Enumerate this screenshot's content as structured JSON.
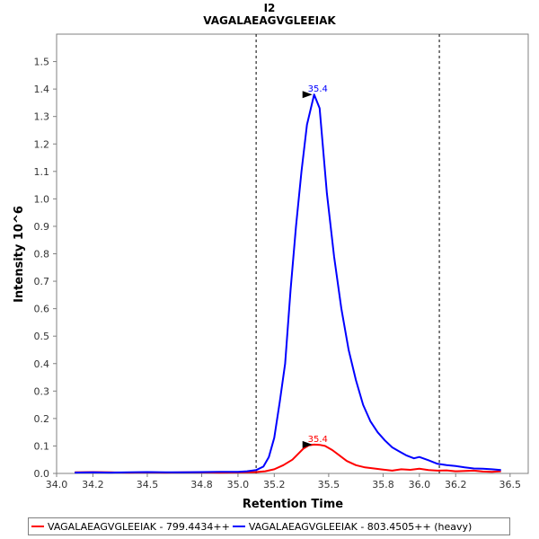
{
  "chart_data": {
    "type": "line",
    "title": "I2",
    "subtitle": "VAGALAEAGVGLEEIAK",
    "xlabel": "Retention Time",
    "ylabel": "Intensity 10^6",
    "xlim": [
      34.0,
      36.6
    ],
    "ylim": [
      0.0,
      1.6
    ],
    "x_ticks": [
      "34.0",
      "34.2",
      "34.5",
      "34.8",
      "35.0",
      "35.2",
      "35.5",
      "35.8",
      "36.0",
      "36.2",
      "36.5"
    ],
    "y_ticks": [
      "0.0",
      "0.1",
      "0.2",
      "0.3",
      "0.4",
      "0.5",
      "0.6",
      "0.7",
      "0.8",
      "0.9",
      "1.0",
      "1.1",
      "1.2",
      "1.3",
      "1.4",
      "1.5"
    ],
    "boundaries": [
      35.1,
      36.11
    ],
    "series": [
      {
        "name": "VAGALAEAGVGLEEIAK - 799.4434++",
        "color": "#ff0000",
        "peak": {
          "x": 35.42,
          "y": 0.105,
          "label": "35.4"
        },
        "x": [
          34.1,
          34.2,
          34.3,
          34.4,
          34.5,
          34.6,
          34.7,
          34.8,
          34.9,
          35.0,
          35.1,
          35.15,
          35.2,
          35.25,
          35.3,
          35.33,
          35.36,
          35.39,
          35.42,
          35.45,
          35.48,
          35.52,
          35.56,
          35.6,
          35.65,
          35.7,
          35.75,
          35.8,
          35.85,
          35.9,
          35.95,
          36.0,
          36.05,
          36.1,
          36.15,
          36.2,
          36.25,
          36.3,
          36.35,
          36.4,
          36.45
        ],
        "y": [
          0.004,
          0.005,
          0.004,
          0.003,
          0.004,
          0.003,
          0.004,
          0.004,
          0.003,
          0.004,
          0.005,
          0.008,
          0.015,
          0.03,
          0.05,
          0.07,
          0.09,
          0.102,
          0.105,
          0.104,
          0.1,
          0.085,
          0.065,
          0.045,
          0.03,
          0.022,
          0.018,
          0.014,
          0.01,
          0.015,
          0.013,
          0.017,
          0.012,
          0.01,
          0.011,
          0.008,
          0.009,
          0.01,
          0.007,
          0.006,
          0.008
        ]
      },
      {
        "name": "VAGALAEAGVGLEEIAK - 803.4505++ (heavy)",
        "color": "#0000ff",
        "peak": {
          "x": 35.42,
          "y": 1.38,
          "label": "35.4"
        },
        "x": [
          34.1,
          34.2,
          34.3,
          34.4,
          34.5,
          34.6,
          34.7,
          34.8,
          34.9,
          35.0,
          35.05,
          35.1,
          35.14,
          35.17,
          35.2,
          35.23,
          35.26,
          35.29,
          35.32,
          35.35,
          35.38,
          35.42,
          35.45,
          35.49,
          35.53,
          35.57,
          35.61,
          35.65,
          35.69,
          35.73,
          35.77,
          35.81,
          35.85,
          35.89,
          35.93,
          35.97,
          36.0,
          36.05,
          36.1,
          36.15,
          36.2,
          36.25,
          36.3,
          36.35,
          36.4,
          36.45
        ],
        "y": [
          0.003,
          0.004,
          0.003,
          0.004,
          0.005,
          0.004,
          0.004,
          0.005,
          0.006,
          0.006,
          0.008,
          0.012,
          0.025,
          0.06,
          0.13,
          0.26,
          0.4,
          0.67,
          0.9,
          1.1,
          1.27,
          1.38,
          1.33,
          1.02,
          0.79,
          0.6,
          0.45,
          0.34,
          0.25,
          0.19,
          0.15,
          0.12,
          0.095,
          0.08,
          0.065,
          0.055,
          0.06,
          0.048,
          0.035,
          0.03,
          0.027,
          0.022,
          0.018,
          0.017,
          0.015,
          0.012
        ]
      }
    ],
    "legend_position": "bottom"
  }
}
